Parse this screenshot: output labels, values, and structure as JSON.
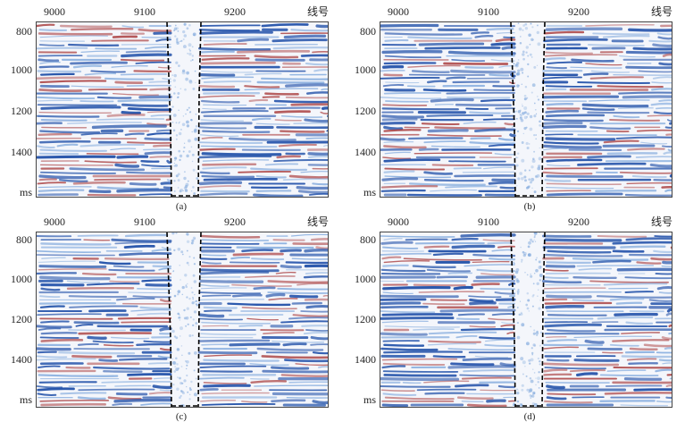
{
  "axis": {
    "x_ticks": [
      "9000",
      "9100",
      "9200"
    ],
    "x_unit": "线号",
    "y_ticks": [
      "800",
      "1000",
      "1200",
      "1400"
    ],
    "y_unit": "ms"
  },
  "panels": [
    {
      "id": "a",
      "caption": "(a)"
    },
    {
      "id": "b",
      "caption": "(b)"
    },
    {
      "id": "c",
      "caption": "(c)"
    },
    {
      "id": "d",
      "caption": "(d)"
    }
  ],
  "colors": {
    "trough": "#1f4fa8",
    "peak": "#a83a3a",
    "light_blue": "#7fa8dc",
    "background": "#f4f6fb",
    "outline": "#000000"
  }
}
